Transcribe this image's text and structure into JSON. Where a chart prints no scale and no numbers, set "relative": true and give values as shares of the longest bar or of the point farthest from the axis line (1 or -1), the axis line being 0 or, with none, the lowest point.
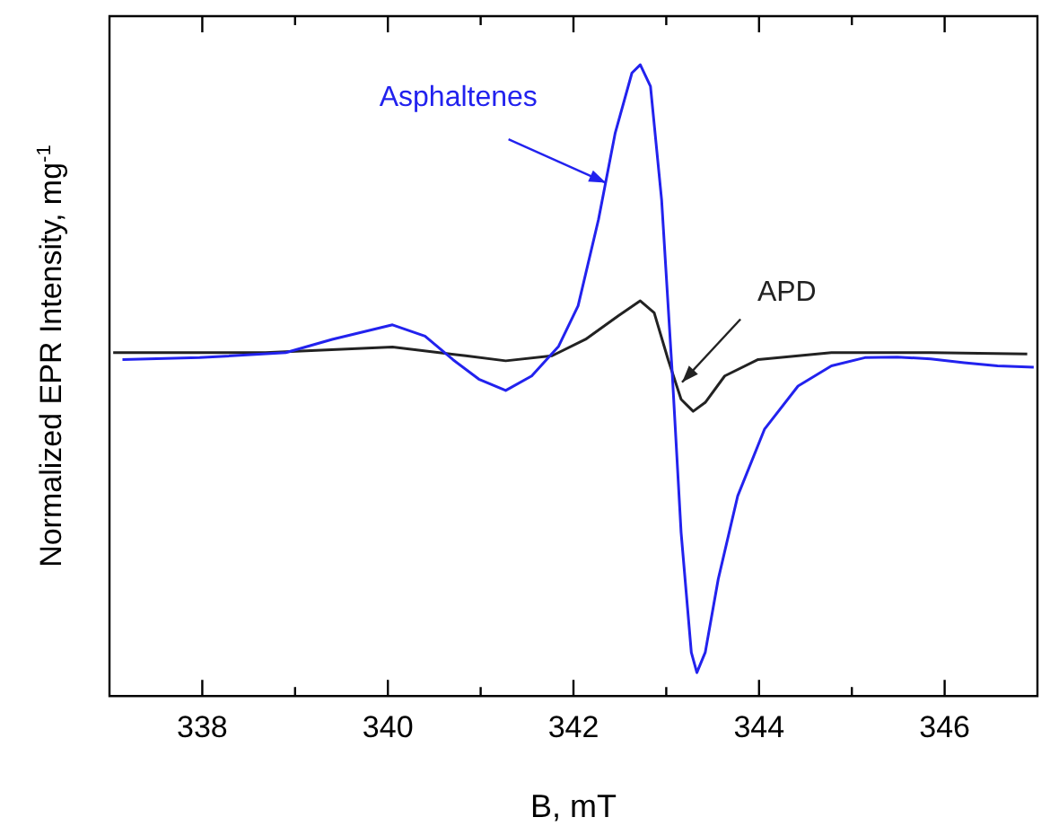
{
  "chart_data": {
    "type": "line",
    "relative": true,
    "xlabel": "B, mT",
    "ylabel": "Normalized EPR Intensity, mg$^{-1}$",
    "xlim": [
      337,
      347
    ],
    "xticks": [
      338,
      {
        "value": 339,
        "label": null
      },
      340,
      {
        "value": 341,
        "label": null
      },
      342,
      {
        "value": 343,
        "label": null
      },
      344,
      {
        "value": 345,
        "label": null
      },
      346
    ],
    "grid": false,
    "legend": false,
    "marker": "none",
    "line_style": "solid",
    "tick_labels": "x",
    "series": [
      {
        "name": "Asphaltenes",
        "color": "#2222ee",
        "x": [
          337.14,
          337.97,
          338.9,
          339.4,
          340.05,
          340.4,
          340.7,
          340.98,
          341.27,
          341.55,
          341.84,
          342.05,
          342.27,
          342.45,
          342.63,
          342.72,
          342.83,
          342.95,
          343.06,
          343.16,
          343.27,
          343.33,
          343.42,
          343.56,
          343.77,
          344.06,
          344.42,
          344.78,
          345.14,
          345.49,
          345.85,
          346.21,
          346.57,
          346.96
        ],
        "values": [
          0.533,
          0.536,
          0.544,
          0.565,
          0.588,
          0.57,
          0.533,
          0.502,
          0.484,
          0.507,
          0.554,
          0.618,
          0.755,
          0.892,
          0.987,
          1.0,
          0.966,
          0.786,
          0.523,
          0.259,
          0.069,
          0.037,
          0.069,
          0.185,
          0.317,
          0.423,
          0.491,
          0.523,
          0.536,
          0.537,
          0.534,
          0.528,
          0.523,
          0.521
        ]
      },
      {
        "name": "APD",
        "color": "#222222",
        "x": [
          337.04,
          338.68,
          340.05,
          340.84,
          341.27,
          341.77,
          342.13,
          342.48,
          342.72,
          342.87,
          343.02,
          343.16,
          343.29,
          343.42,
          343.63,
          343.99,
          344.78,
          345.85,
          346.89
        ],
        "values": [
          0.544,
          0.544,
          0.553,
          0.539,
          0.531,
          0.539,
          0.565,
          0.602,
          0.626,
          0.607,
          0.533,
          0.47,
          0.451,
          0.465,
          0.507,
          0.533,
          0.544,
          0.544,
          0.542
        ]
      }
    ]
  }
}
